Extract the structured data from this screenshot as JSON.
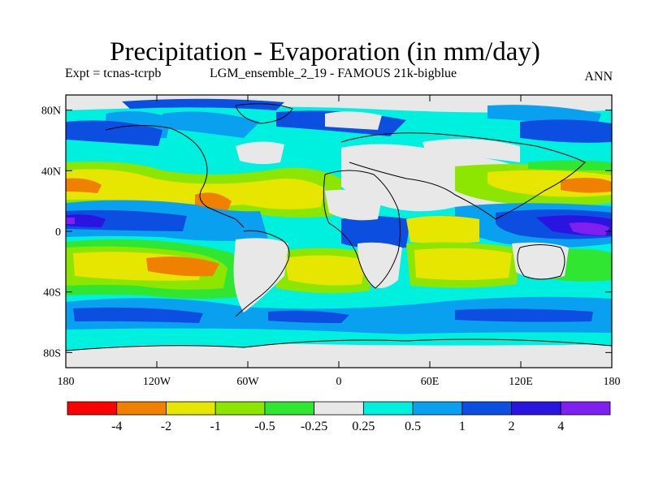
{
  "title": "Precipitation - Evaporation (in mm/day)",
  "expt_label": "Expt = tcnas-tcrpb",
  "run_label": "LGM_ensemble_2_19 - FAMOUS 21k-bigblue",
  "season": "ANN",
  "lat_labels": [
    "80N",
    "40N",
    "0",
    "40S",
    "80S"
  ],
  "lat_values": [
    80,
    40,
    0,
    -40,
    -80
  ],
  "lon_labels": [
    "180",
    "120W",
    "60W",
    "0",
    "60E",
    "120E",
    "180"
  ],
  "lon_values": [
    -180,
    -120,
    -60,
    0,
    60,
    120,
    180
  ],
  "colorbar": {
    "colors": [
      "#ff0000",
      "#f08000",
      "#e6e600",
      "#8ce600",
      "#30e630",
      "#e8e8e8",
      "#00f0e0",
      "#0aa0f0",
      "#0c4ee0",
      "#2a14e0",
      "#8020f0"
    ],
    "labels": [
      "-4",
      "-2",
      "-1",
      "-0.5",
      "-0.25",
      "0.25",
      "0.5",
      "1",
      "2",
      "4"
    ]
  }
}
